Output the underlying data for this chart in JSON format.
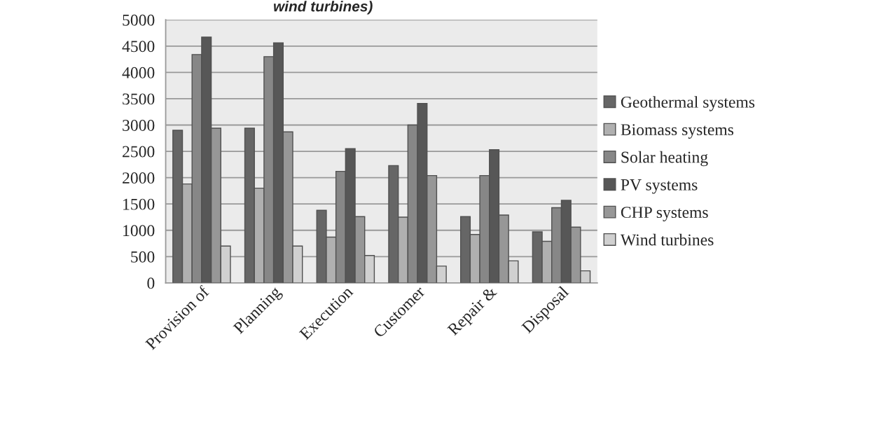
{
  "chart_data": {
    "type": "bar",
    "title": "wind turbines)",
    "categories": [
      "Provision of",
      "Planning",
      "Execution",
      "Customer",
      "Repair &",
      "Disposal"
    ],
    "series": [
      {
        "name": "Geothermal systems",
        "color": "#666666",
        "values": [
          2900,
          2940,
          1380,
          2230,
          1260,
          970
        ]
      },
      {
        "name": "Biomass systems",
        "color": "#b0b0b0",
        "values": [
          1880,
          1800,
          870,
          1250,
          920,
          790
        ]
      },
      {
        "name": "Solar heating",
        "color": "#878787",
        "values": [
          4340,
          4300,
          2120,
          3000,
          2040,
          1430
        ]
      },
      {
        "name": "PV systems",
        "color": "#575757",
        "values": [
          4670,
          4560,
          2550,
          3410,
          2530,
          1570
        ]
      },
      {
        "name": "CHP systems",
        "color": "#979797",
        "values": [
          2940,
          2870,
          1260,
          2040,
          1290,
          1060
        ]
      },
      {
        "name": "Wind turbines",
        "color": "#d0d0d0",
        "values": [
          700,
          700,
          520,
          320,
          420,
          230
        ]
      }
    ],
    "ylim": [
      0,
      5000
    ],
    "yticks": [
      0,
      500,
      1000,
      1500,
      2000,
      2500,
      3000,
      3500,
      4000,
      4500,
      5000
    ],
    "grid": "y",
    "legend": "right"
  }
}
